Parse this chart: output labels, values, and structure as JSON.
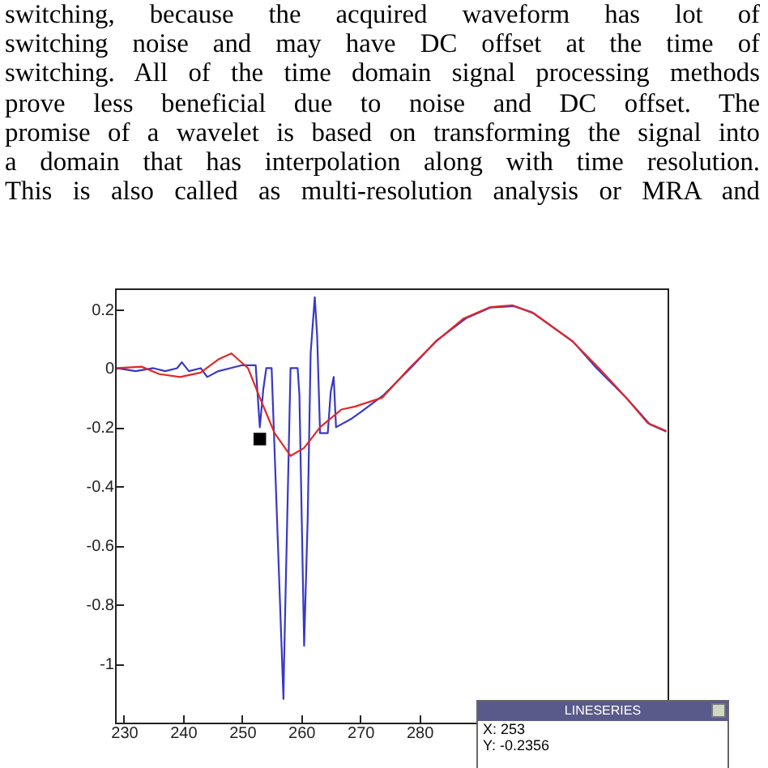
{
  "chart_data": {
    "type": "line",
    "annotations": [
      "switching, because the acquired waveform has lot of",
      "switching noise and may have DC offset at the time of",
      "switching. All of the time domain signal processing methods",
      "prove less beneficial due to noise and DC offset. The",
      "promise of a wavelet is based on transforming the signal into",
      "a domain that has interpolation along with time resolution.",
      "This is also called as multi-resolution analysis or MRA and",
      "LINESERIES",
      "X: 253",
      "Y: -0.2356"
    ],
    "series": [
      {
        "color": "#3838c8",
        "x": [
          228.8,
          232,
          235,
          237,
          239,
          239.8,
          241,
          243,
          244.1,
          246,
          248,
          250,
          252.3,
          253,
          253.6,
          254.1,
          255,
          257,
          257.1,
          258.2,
          259.4,
          259.7,
          260.5,
          261.1,
          261.6,
          262.3,
          262.7,
          263.2,
          264.5,
          265,
          265.5,
          265.9,
          268.6,
          270,
          274,
          278.5,
          283,
          288,
          292,
          296,
          299,
          306,
          310,
          315,
          319,
          321.8
        ],
        "values": [
          0,
          -0.01,
          0,
          -0.01,
          0,
          0.02,
          -0.01,
          0,
          -0.03,
          -0.01,
          0,
          0.01,
          0.01,
          -0.2,
          -0.07,
          0,
          0,
          -1.12,
          -1.0,
          0,
          0,
          -0.09,
          -0.94,
          -0.51,
          0.05,
          0.24,
          0.11,
          -0.22,
          -0.22,
          -0.08,
          -0.03,
          -0.2,
          -0.17,
          -0.15,
          -0.09,
          0,
          0.095,
          0.17,
          0.205,
          0.21,
          0.19,
          0.09,
          0,
          -0.1,
          -0.19,
          -0.215
        ]
      },
      {
        "color": "#e02828",
        "x": [
          228.8,
          233,
          236,
          239.5,
          243,
          246,
          248.2,
          251,
          253,
          255.5,
          258.2,
          260.5,
          263.2,
          266.8,
          269.1,
          273.7,
          278.3,
          282.8,
          287.4,
          292,
          295.7,
          299.4,
          305.8,
          310.4,
          315,
          318.6,
          321.8
        ],
        "values": [
          0,
          0.005,
          -0.02,
          -0.03,
          -0.015,
          0.03,
          0.05,
          0,
          -0.1,
          -0.22,
          -0.297,
          -0.27,
          -0.2,
          -0.14,
          -0.13,
          -0.1,
          0,
          0.09,
          0.167,
          0.207,
          0.213,
          0.185,
          0.093,
          0,
          -0.1,
          -0.185,
          -0.213
        ]
      },
      {
        "type": "scatter",
        "marker": "square",
        "color": "#000000",
        "x": [
          253
        ],
        "values": [
          -0.24
        ]
      }
    ],
    "xlim": [
      228.5,
      322
    ],
    "xticks": [
      230,
      240,
      250,
      260,
      270,
      280
    ],
    "ylim": [
      -1.2,
      0.27
    ],
    "yticks": [
      -1,
      -0.8,
      -0.6,
      -0.4,
      -0.2,
      0,
      0.2
    ],
    "marker": "none",
    "line_style": "solid",
    "grid": false
  }
}
